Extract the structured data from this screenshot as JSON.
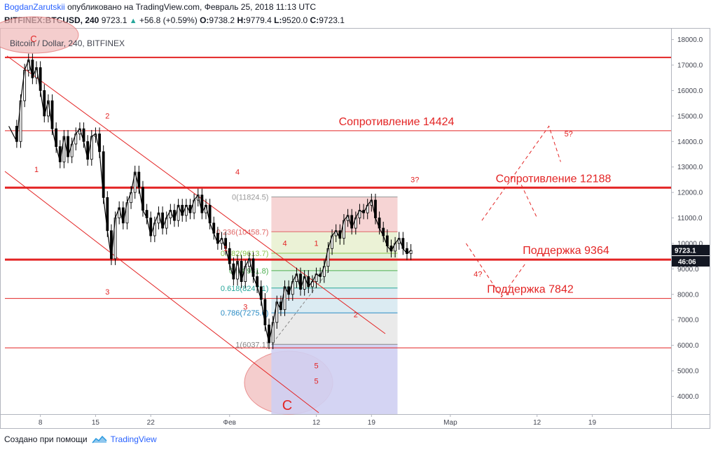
{
  "header": {
    "author": "BogdanZarutskii",
    "published": "опубликовано на TradingView.com, Февраль 25, 2018 11:13 UTC",
    "symbol": "BITFINEX:BTCUSD, 240",
    "last": "9723.1",
    "change": "+56.8 (+0.59%)",
    "o_label": "O:",
    "o": "9738.2",
    "h_label": "H:",
    "h": "9779.4",
    "l_label": "L:",
    "l": "9520.0",
    "c_label": "C:",
    "c": "9723.1",
    "up_arrow": "▲"
  },
  "footer": {
    "created": "Создано при помощи",
    "brand": "TradingView",
    "brand_icon": "tradingview-logo-icon"
  },
  "colors": {
    "red": "#e32424",
    "fib_red": "#e06666",
    "candle": "#000000",
    "axis": "#434651"
  },
  "chart_data": {
    "type": "candlestick",
    "title": "Bitcoin / Dollar, 240, BITFINEX",
    "ylim": [
      3300,
      18400
    ],
    "y_ticks": [
      "18000.0",
      "17000.0",
      "16000.0",
      "15000.0",
      "14000.0",
      "13000.0",
      "12000.0",
      "11000.0",
      "10000.0",
      "9000.0",
      "8000.0",
      "7000.0",
      "6000.0",
      "5000.0",
      "4000.0"
    ],
    "x_ticks": [
      {
        "label": "8",
        "day": 8
      },
      {
        "label": "15",
        "day": 15
      },
      {
        "label": "22",
        "day": 22
      },
      {
        "label": "Фев",
        "day": 32
      },
      {
        "label": "12",
        "day": 43
      },
      {
        "label": "19",
        "day": 50
      },
      {
        "label": "Мар",
        "day": 60
      },
      {
        "label": "12",
        "day": 71
      },
      {
        "label": "19",
        "day": 78
      }
    ],
    "xlim_days": [
      3.5,
      88
    ],
    "last_price_label": "9723.1",
    "countdown_label": "46:06",
    "price_path": [
      [
        4,
        14600
      ],
      [
        5,
        14000
      ],
      [
        5.5,
        15600
      ],
      [
        6,
        16800
      ],
      [
        6.5,
        17200
      ],
      [
        7,
        16500
      ],
      [
        7.5,
        16900
      ],
      [
        8,
        16000
      ],
      [
        8.5,
        15000
      ],
      [
        9,
        15600
      ],
      [
        9.5,
        14500
      ],
      [
        10,
        13800
      ],
      [
        10.5,
        13200
      ],
      [
        11,
        14200
      ],
      [
        11.5,
        13400
      ],
      [
        12,
        13900
      ],
      [
        12.5,
        14300
      ],
      [
        13,
        14500
      ],
      [
        13.5,
        14000
      ],
      [
        14,
        13300
      ],
      [
        14.5,
        14200
      ],
      [
        15,
        14300
      ],
      [
        15.5,
        13600
      ],
      [
        16,
        11800
      ],
      [
        16.5,
        10500
      ],
      [
        17,
        9400
      ],
      [
        17.5,
        11000
      ],
      [
        18,
        11400
      ],
      [
        18.5,
        10800
      ],
      [
        19,
        11600
      ],
      [
        19.5,
        12000
      ],
      [
        20,
        12800
      ],
      [
        20.5,
        12200
      ],
      [
        21,
        11300
      ],
      [
        21.5,
        11000
      ],
      [
        22,
        10300
      ],
      [
        22.5,
        10800
      ],
      [
        23,
        11200
      ],
      [
        23.5,
        10600
      ],
      [
        24,
        11000
      ],
      [
        24.5,
        11300
      ],
      [
        25,
        10900
      ],
      [
        25.5,
        11500
      ],
      [
        26,
        11100
      ],
      [
        26.5,
        11500
      ],
      [
        27,
        11200
      ],
      [
        27.5,
        11700
      ],
      [
        28,
        11900
      ],
      [
        28.5,
        11200
      ],
      [
        29,
        11500
      ],
      [
        29.5,
        10800
      ],
      [
        30,
        10400
      ],
      [
        30.5,
        10000
      ],
      [
        31,
        10200
      ],
      [
        31.5,
        9800
      ],
      [
        32,
        9200
      ],
      [
        32.5,
        8600
      ],
      [
        33,
        9300
      ],
      [
        33.5,
        8500
      ],
      [
        34,
        9100
      ],
      [
        34.5,
        9400
      ],
      [
        35,
        8700
      ],
      [
        35.5,
        8300
      ],
      [
        36,
        7800
      ],
      [
        36.5,
        6800
      ],
      [
        37,
        6100
      ],
      [
        37.5,
        6900
      ],
      [
        38,
        7700
      ],
      [
        38.5,
        7400
      ],
      [
        39,
        8300
      ],
      [
        39.5,
        8000
      ],
      [
        40,
        8500
      ],
      [
        40.5,
        8800
      ],
      [
        41,
        8200
      ],
      [
        41.5,
        8700
      ],
      [
        42,
        8300
      ],
      [
        42.5,
        8500
      ],
      [
        43,
        8800
      ],
      [
        43.5,
        8700
      ],
      [
        44,
        9100
      ],
      [
        44.5,
        9800
      ],
      [
        45,
        10300
      ],
      [
        45.5,
        10500
      ],
      [
        46,
        10200
      ],
      [
        46.5,
        10900
      ],
      [
        47,
        11100
      ],
      [
        47.5,
        10600
      ],
      [
        48,
        11000
      ],
      [
        48.5,
        11300
      ],
      [
        49,
        11200
      ],
      [
        49.5,
        11500
      ],
      [
        50,
        11700
      ],
      [
        50.5,
        11000
      ],
      [
        51,
        10600
      ],
      [
        51.5,
        10300
      ],
      [
        52,
        9900
      ],
      [
        52.5,
        9700
      ],
      [
        53,
        10000
      ],
      [
        53.5,
        10200
      ],
      [
        54,
        9800
      ],
      [
        54.5,
        9600
      ],
      [
        55,
        9723
      ]
    ],
    "levels": [
      {
        "price": 17300,
        "label": "",
        "weight": "mid"
      },
      {
        "price": 14424,
        "label": "Сопротивление 14424",
        "weight": "thin"
      },
      {
        "price": 12188,
        "label": "Сопротивление 12188",
        "weight": "thick"
      },
      {
        "price": 9364,
        "label": "Поддержка 9364",
        "weight": "thick"
      },
      {
        "price": 7842,
        "label": "Поддержка 7842",
        "weight": "thin"
      },
      {
        "price": 5900,
        "label": "",
        "weight": "thin"
      }
    ],
    "fib": {
      "day_start": 37.3,
      "day_end": 53.3,
      "levels": [
        {
          "ratio": "0",
          "price": 11824.5,
          "label": "0(11824.5)",
          "color": "#999999"
        },
        {
          "ratio": "0.236",
          "price": 10458.7,
          "label": "0.236(10458.7)",
          "color": "#e06666"
        },
        {
          "ratio": "0.382",
          "price": 9613.7,
          "label": "0.382(9613.7)",
          "color": "#8bc34a"
        },
        {
          "ratio": "0.5",
          "price": 8931.8,
          "label": "0.5(8931.8)",
          "color": "#4caf50"
        },
        {
          "ratio": "0.618",
          "price": 8247.1,
          "label": "0.618(8247.1)",
          "color": "#26a69a"
        },
        {
          "ratio": "0.786",
          "price": 7275.6,
          "label": "0.786(7275.6)",
          "color": "#2a8bc4"
        },
        {
          "ratio": "1",
          "price": 6037.1,
          "label": "1(6037.1)",
          "color": "#888888"
        }
      ],
      "ext_low": 3300
    },
    "wave_labels": [
      {
        "text": "1",
        "day": 7.5,
        "price": 12800
      },
      {
        "text": "2",
        "day": 16.5,
        "price": 14900
      },
      {
        "text": "3",
        "day": 16.5,
        "price": 8000
      },
      {
        "text": "4",
        "day": 33,
        "price": 12700
      },
      {
        "text": "1",
        "day": 31.5,
        "price": 9700
      },
      {
        "text": "4",
        "day": 39,
        "price": 9900
      },
      {
        "text": "1",
        "day": 43,
        "price": 9900
      },
      {
        "text": "3",
        "day": 34,
        "price": 7400
      },
      {
        "text": "2",
        "day": 48,
        "price": 7100
      },
      {
        "text": "3?",
        "day": 55.5,
        "price": 12400
      },
      {
        "text": "4?",
        "day": 63.5,
        "price": 8700
      },
      {
        "text": "5?",
        "day": 75,
        "price": 14200
      },
      {
        "text": "5",
        "day": 43,
        "price": 5100
      },
      {
        "text": "5",
        "day": 43,
        "price": 4500
      }
    ],
    "wave_c_label": "C",
    "top_wave_label": "С",
    "forecast": [
      [
        62,
        10000
      ],
      [
        66.5,
        7900
      ],
      [
        69.5,
        9200
      ]
    ],
    "forecast2": [
      [
        64,
        10900
      ],
      [
        72.5,
        14600
      ],
      [
        74,
        13200
      ]
    ],
    "forecast_side": [
      [
        69,
        12300
      ],
      [
        71,
        11000
      ]
    ]
  }
}
